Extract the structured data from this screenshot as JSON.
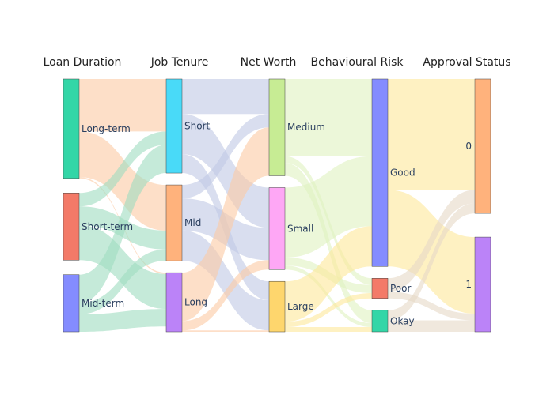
{
  "chart_data": {
    "type": "sankey",
    "columns": [
      "Loan Duration",
      "Job Tenure",
      "Net Worth",
      "Behavioural Risk",
      "Approval Status"
    ],
    "nodes": [
      {
        "id": "long-term",
        "label": "Long-term",
        "column": 0,
        "color": "#33d6a7",
        "flow_color": "#fbc9a4"
      },
      {
        "id": "short-term",
        "label": "Short-term",
        "column": 0,
        "color": "#f37a68",
        "flow_color": "#9fdcc0"
      },
      {
        "id": "mid-term",
        "label": "Mid-term",
        "column": 0,
        "color": "#848cff",
        "flow_color": "#9fdcc0"
      },
      {
        "id": "short",
        "label": "Short",
        "column": 1,
        "color": "#49daf8",
        "flow_color": "#bfc8e4"
      },
      {
        "id": "mid",
        "label": "Mid",
        "column": 1,
        "color": "#ffb27c",
        "flow_color": "#bfc8e4"
      },
      {
        "id": "long",
        "label": "Long",
        "column": 1,
        "color": "#bb83f8",
        "flow_color": "#fbc9a4"
      },
      {
        "id": "medium",
        "label": "Medium",
        "column": 2,
        "color": "#c7ec94",
        "flow_color": "#dff2c0"
      },
      {
        "id": "small",
        "label": "Small",
        "column": 2,
        "color": "#fea7f5",
        "flow_color": "#dff2c0"
      },
      {
        "id": "large",
        "label": "Large",
        "column": 2,
        "color": "#fed66d",
        "flow_color": "#fde89a"
      },
      {
        "id": "good",
        "label": "Good",
        "column": 3,
        "color": "#848cff",
        "flow_color": "#fde89a"
      },
      {
        "id": "poor",
        "label": "Poor",
        "column": 3,
        "color": "#f37a68",
        "flow_color": "#e6d9c6"
      },
      {
        "id": "okay",
        "label": "Okay",
        "column": 3,
        "color": "#33d6a7",
        "flow_color": "#e6d9c6"
      },
      {
        "id": "approved-0",
        "label": "0",
        "column": 4,
        "color": "#ffb27c"
      },
      {
        "id": "approved-1",
        "label": "1",
        "column": 4,
        "color": "#bb83f8"
      }
    ],
    "links": [
      {
        "source": "long-term",
        "target": "short",
        "value": 78
      },
      {
        "source": "long-term",
        "target": "mid",
        "value": 68
      },
      {
        "source": "long-term",
        "target": "long",
        "value": 2
      },
      {
        "source": "short-term",
        "target": "short",
        "value": 20
      },
      {
        "source": "short-term",
        "target": "mid",
        "value": 28
      },
      {
        "source": "short-term",
        "target": "long",
        "value": 52
      },
      {
        "source": "mid-term",
        "target": "short",
        "value": 42
      },
      {
        "source": "mid-term",
        "target": "mid",
        "value": 17
      },
      {
        "source": "mid-term",
        "target": "long",
        "value": 26
      },
      {
        "source": "short",
        "target": "medium",
        "value": 52
      },
      {
        "source": "short",
        "target": "small",
        "value": 60
      },
      {
        "source": "short",
        "target": "large",
        "value": 28
      },
      {
        "source": "mid",
        "target": "medium",
        "value": 20
      },
      {
        "source": "mid",
        "target": "small",
        "value": 48
      },
      {
        "source": "mid",
        "target": "large",
        "value": 45
      },
      {
        "source": "long",
        "target": "medium",
        "value": 72
      },
      {
        "source": "long",
        "target": "small",
        "value": 14
      },
      {
        "source": "long",
        "target": "large",
        "value": 2
      },
      {
        "source": "medium",
        "target": "good",
        "value": 115
      },
      {
        "source": "medium",
        "target": "poor",
        "value": 10
      },
      {
        "source": "medium",
        "target": "okay",
        "value": 19
      },
      {
        "source": "small",
        "target": "good",
        "value": 104
      },
      {
        "source": "small",
        "target": "poor",
        "value": 12
      },
      {
        "source": "small",
        "target": "okay",
        "value": 6
      },
      {
        "source": "large",
        "target": "good",
        "value": 60
      },
      {
        "source": "large",
        "target": "poor",
        "value": 8
      },
      {
        "source": "large",
        "target": "okay",
        "value": 7
      },
      {
        "source": "good",
        "target": "approved-0",
        "value": 165
      },
      {
        "source": "good",
        "target": "approved-1",
        "value": 114
      },
      {
        "source": "poor",
        "target": "approved-0",
        "value": 20
      },
      {
        "source": "poor",
        "target": "approved-1",
        "value": 10
      },
      {
        "source": "okay",
        "target": "approved-0",
        "value": 15
      },
      {
        "source": "okay",
        "target": "approved-1",
        "value": 17
      }
    ]
  }
}
